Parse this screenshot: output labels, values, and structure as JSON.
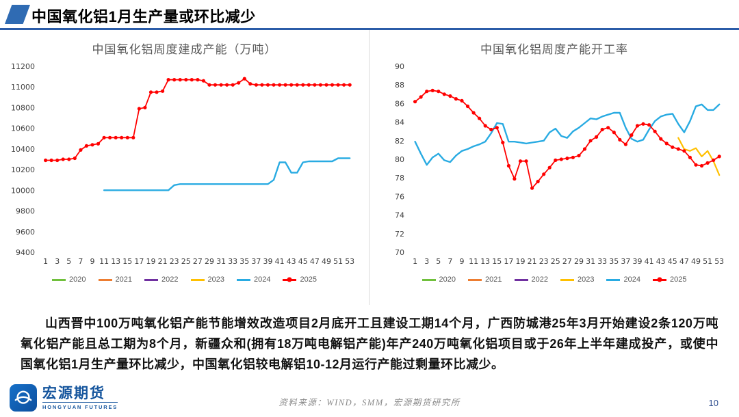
{
  "slide": {
    "title": "中国氧化铝1月生产量或环比减少",
    "body_paragraph": "山西晋中100万吨氧化铝产能节能增效改造项目2月底开工且建设工期14个月，广西防城港25年3月开始建设2条120万吨氧化铝产能且总工期为8个月，新疆众和(拥有18万吨电解铝产能)年产240万吨氧化铝项目或于26年上半年建成投产，或使中国氧化铝1月生产量环比减少，中国氧化铝较电解铝10-12月运行产能过剩量环比减少。",
    "source_text": "资料来源：WIND，SMM，宏源期货研究所",
    "page_number": "10",
    "logo": {
      "name": "宏源期货",
      "subtitle": "HONGYUAN FUTURES"
    }
  },
  "colors": {
    "accent_blue": "#2b5ca8",
    "series_2020": "#70c03c",
    "series_2021": "#ed7d31",
    "series_2022": "#7030a0",
    "series_2023": "#ffc000",
    "series_2024": "#29abe2",
    "series_2025": "#ff0000"
  },
  "chart_data": [
    {
      "type": "line",
      "title": "中国氧化铝周度建成产能（万吨）",
      "xlabel": "",
      "ylabel": "",
      "xlim": [
        0,
        54.5
      ],
      "ylim": [
        9400,
        11200
      ],
      "ytick_step": 200,
      "xticks": [
        1,
        3,
        5,
        7,
        9,
        11,
        13,
        15,
        17,
        19,
        21,
        23,
        25,
        27,
        29,
        31,
        33,
        35,
        37,
        39,
        41,
        43,
        45,
        47,
        49,
        51,
        53
      ],
      "grid": false,
      "legend_position": "bottom",
      "legend": [
        {
          "label": "2020",
          "color": "#70c03c"
        },
        {
          "label": "2021",
          "color": "#ed7d31"
        },
        {
          "label": "2022",
          "color": "#7030a0"
        },
        {
          "label": "2023",
          "color": "#ffc000"
        },
        {
          "label": "2024",
          "color": "#29abe2"
        },
        {
          "label": "2025",
          "color": "#ff0000",
          "marker": true
        }
      ],
      "series": [
        {
          "name": "2024",
          "color": "#29abe2",
          "width": 2.4,
          "marker": false,
          "x_start": 11,
          "y": [
            10000,
            10000,
            10000,
            10000,
            10000,
            10000,
            10000,
            10000,
            10000,
            10000,
            10000,
            10000,
            10050,
            10060,
            10060,
            10060,
            10060,
            10060,
            10060,
            10060,
            10060,
            10060,
            10060,
            10060,
            10060,
            10060,
            10060,
            10060,
            10060,
            10100,
            10270,
            10270,
            10170,
            10170,
            10270,
            10280,
            10280,
            10280,
            10280,
            10280,
            10310,
            10310,
            10310
          ]
        },
        {
          "name": "2025",
          "color": "#ff0000",
          "width": 1.8,
          "marker": true,
          "x_start": 1,
          "y": [
            10290,
            10290,
            10290,
            10300,
            10300,
            10310,
            10390,
            10430,
            10440,
            10450,
            10510,
            10510,
            10510,
            10510,
            10510,
            10510,
            10790,
            10800,
            10950,
            10950,
            10960,
            11070,
            11070,
            11070,
            11070,
            11070,
            11070,
            11060,
            11020,
            11020,
            11020,
            11020,
            11020,
            11040,
            11080,
            11030,
            11020,
            11020,
            11020,
            11020,
            11020,
            11020,
            11020,
            11020,
            11020,
            11020,
            11020,
            11020,
            11020,
            11020,
            11020,
            11020,
            11020
          ]
        }
      ]
    },
    {
      "type": "line",
      "title": "中国氧化铝周度产能开工率",
      "xlabel": "",
      "ylabel": "",
      "xlim": [
        0,
        54.5
      ],
      "ylim": [
        70,
        90
      ],
      "ytick_step": 2,
      "xticks": [
        1,
        3,
        5,
        7,
        9,
        11,
        13,
        15,
        17,
        19,
        21,
        23,
        25,
        27,
        29,
        31,
        33,
        35,
        37,
        39,
        41,
        43,
        45,
        47,
        49,
        51,
        53
      ],
      "grid": false,
      "legend_position": "bottom",
      "legend": [
        {
          "label": "2020",
          "color": "#70c03c"
        },
        {
          "label": "2021",
          "color": "#ed7d31"
        },
        {
          "label": "2022",
          "color": "#7030a0"
        },
        {
          "label": "2023",
          "color": "#ffc000"
        },
        {
          "label": "2024",
          "color": "#29abe2"
        },
        {
          "label": "2025",
          "color": "#ff0000",
          "marker": true
        }
      ],
      "series": [
        {
          "name": "2023",
          "color": "#ffc000",
          "width": 2.2,
          "marker": false,
          "x_start": 46,
          "y": [
            82.3,
            81.1,
            80.9,
            81.2,
            80.3,
            80.9,
            79.8,
            78.3
          ]
        },
        {
          "name": "2024",
          "color": "#29abe2",
          "width": 2.4,
          "marker": false,
          "x_start": 1,
          "y": [
            81.9,
            80.6,
            79.4,
            80.2,
            80.6,
            79.9,
            79.7,
            80.4,
            80.9,
            81.1,
            81.4,
            81.6,
            81.9,
            82.8,
            83.9,
            83.8,
            81.9,
            81.9,
            81.8,
            81.7,
            81.8,
            81.9,
            82.0,
            82.9,
            83.3,
            82.5,
            82.3,
            83.0,
            83.4,
            83.9,
            84.4,
            84.3,
            84.6,
            84.8,
            85.0,
            85.0,
            83.4,
            82.2,
            81.9,
            82.1,
            83.2,
            84.1,
            84.6,
            84.8,
            84.9,
            83.8,
            82.9,
            84.1,
            85.7,
            85.9,
            85.3,
            85.3,
            85.9
          ]
        },
        {
          "name": "2025",
          "color": "#ff0000",
          "width": 1.8,
          "marker": true,
          "x_start": 1,
          "y": [
            86.2,
            86.7,
            87.3,
            87.4,
            87.3,
            87.0,
            86.8,
            86.5,
            86.3,
            85.7,
            85.0,
            84.4,
            83.6,
            83.2,
            83.4,
            81.8,
            79.3,
            77.9,
            79.8,
            79.8,
            76.9,
            77.6,
            78.4,
            79.1,
            79.9,
            80.0,
            80.1,
            80.2,
            80.4,
            81.1,
            82.0,
            82.4,
            83.2,
            83.4,
            82.9,
            82.1,
            81.6,
            82.6,
            83.6,
            83.8,
            83.7,
            83.0,
            82.2,
            81.7,
            81.3,
            81.1,
            80.9,
            80.2,
            79.4,
            79.3,
            79.6,
            79.9,
            80.3
          ]
        }
      ]
    }
  ]
}
